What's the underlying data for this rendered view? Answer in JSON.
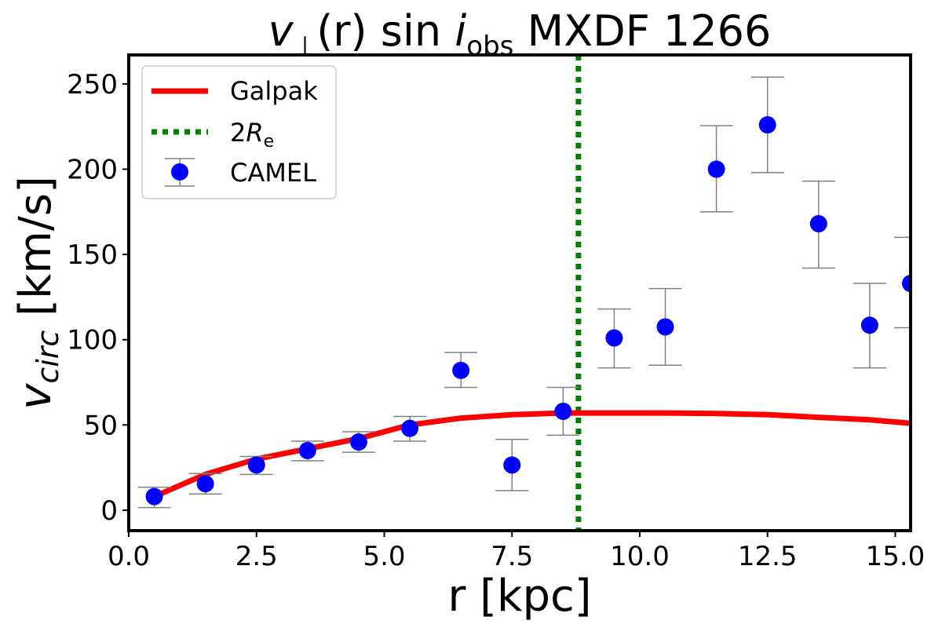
{
  "chart_data": {
    "type": "scatter",
    "title_prefix": "v",
    "title_sub": "⊥",
    "title_mid": "(r) sin ",
    "title_italic": "i",
    "title_sub2": "obs",
    "title_suffix": " MXDF 1266",
    "xlabel": "r [kpc]",
    "ylabel_main": "v",
    "ylabel_sub": "circ",
    "ylabel_unit": " [km/s]",
    "xlim": [
      0.0,
      15.3
    ],
    "ylim": [
      -12,
      267
    ],
    "xticks": [
      0.0,
      2.5,
      5.0,
      7.5,
      10.0,
      12.5,
      15.0
    ],
    "xtick_labels": [
      "0.0",
      "2.5",
      "5.0",
      "7.5",
      "10.0",
      "12.5",
      "15.0"
    ],
    "yticks": [
      0,
      50,
      100,
      150,
      200,
      250
    ],
    "ytick_labels": [
      "0",
      "50",
      "100",
      "150",
      "200",
      "250"
    ],
    "grid": false,
    "legend_position": "top-left",
    "series": [
      {
        "name": "Galpak",
        "kind": "line",
        "color": "#ff0000",
        "x": [
          0.5,
          1.5,
          2.5,
          3.5,
          4.5,
          5.5,
          6.5,
          7.5,
          8.5,
          9.5,
          10.5,
          11.5,
          12.5,
          13.5,
          14.5,
          15.3
        ],
        "y": [
          8,
          21,
          30,
          36,
          42,
          50,
          54,
          56,
          57,
          57,
          57,
          56.7,
          56,
          54.5,
          53,
          51
        ]
      },
      {
        "name": "CAMEL",
        "kind": "scatter-errorbar",
        "color": "#0000ff",
        "errcolor": "#808080",
        "x": [
          0.5,
          1.5,
          2.5,
          3.5,
          4.5,
          5.5,
          6.5,
          7.5,
          8.5,
          9.5,
          10.5,
          11.5,
          12.5,
          13.5,
          14.5,
          15.3
        ],
        "y": [
          8,
          15.5,
          26.5,
          35,
          40,
          48,
          82,
          26.5,
          58,
          101,
          107.5,
          200,
          226,
          168,
          108.5,
          133
        ],
        "ylow": [
          1.5,
          9.5,
          21,
          29,
          34,
          40.5,
          72,
          11.5,
          44,
          83.5,
          85,
          175,
          198,
          142,
          83.5,
          107
        ],
        "yhigh": [
          13.5,
          21.5,
          31.5,
          40.5,
          46,
          55,
          92.5,
          41.5,
          72,
          118,
          130,
          225.5,
          254,
          193,
          133,
          160
        ]
      }
    ],
    "vline": {
      "name_main": "2",
      "name_italic": "R",
      "name_sub": "e",
      "x": 8.8,
      "color": "#008000"
    }
  }
}
